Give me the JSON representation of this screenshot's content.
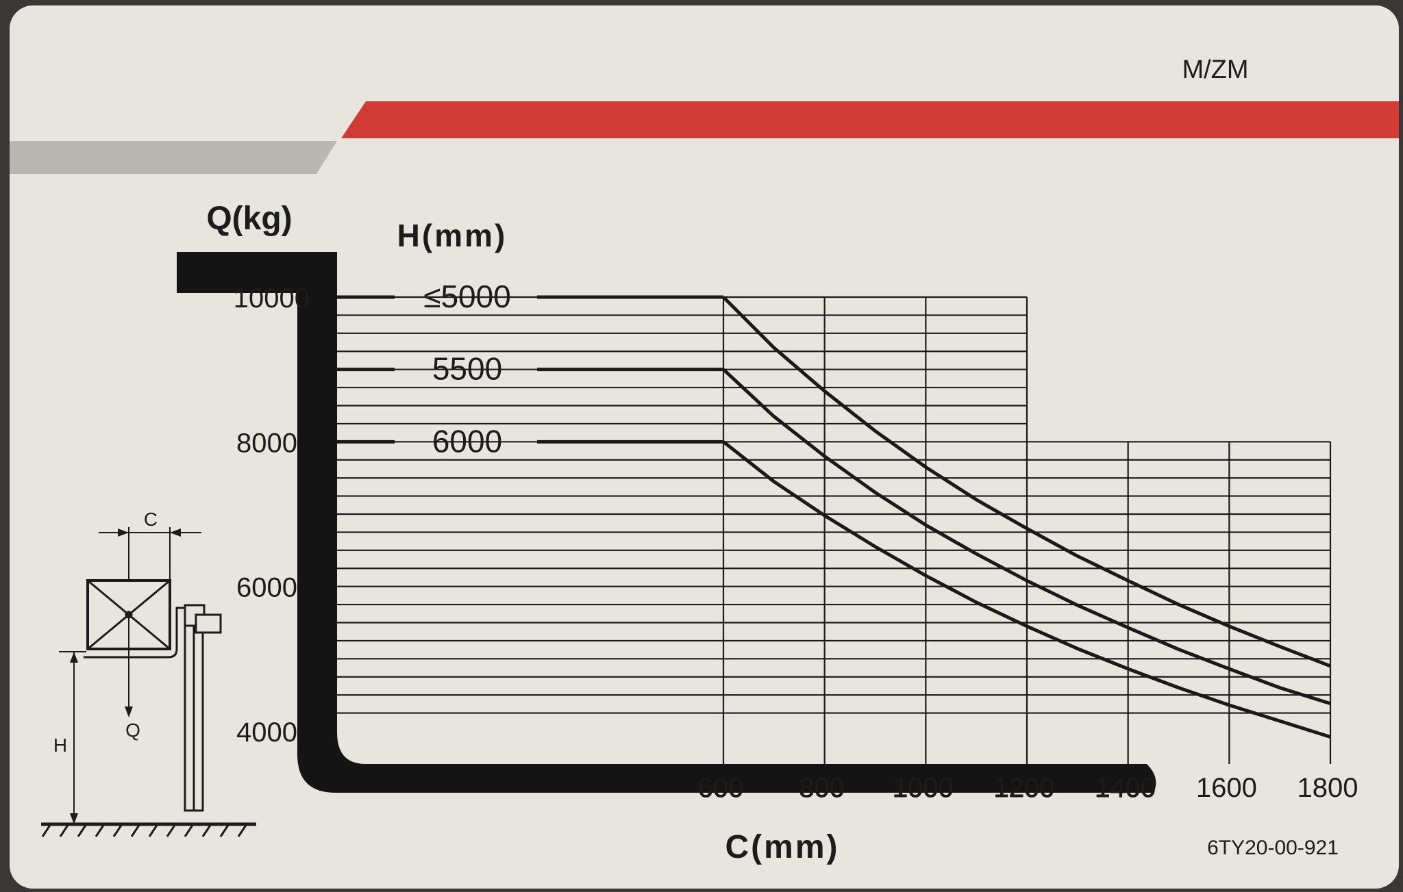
{
  "plate": {
    "model_code": "M/ZM",
    "part_number": "6TY20-00-921"
  },
  "colors": {
    "stripe_red": "#d23a36",
    "stripe_grey": "#b9b7b1",
    "plate": "#e7e5dd",
    "ink": "#1a1a1a"
  },
  "diagram": {
    "c_label": "C",
    "q_label": "Q",
    "h_label": "H"
  },
  "chart_data": {
    "type": "line",
    "title": "",
    "xlabel": "C(mm)",
    "ylabel": "Q(kg)",
    "series_label_header": "H(mm)",
    "xlim": [
      600,
      1800
    ],
    "ylim": [
      4000,
      10000
    ],
    "x_ticks": [
      "600",
      "800",
      "1000",
      "1200",
      "1400",
      "1600",
      "1800"
    ],
    "y_ticks": [
      "4000",
      "6000",
      "8000",
      "10000"
    ],
    "grid": true,
    "x": [
      600,
      700,
      800,
      900,
      1000,
      1100,
      1200,
      1300,
      1400,
      1500,
      1600,
      1700,
      1800
    ],
    "series": [
      {
        "name": "≤5000",
        "values": [
          10000,
          9300,
          8700,
          8150,
          7650,
          7200,
          6800,
          6420,
          6080,
          5750,
          5450,
          5170,
          4900
        ]
      },
      {
        "name": "5500",
        "values": [
          9000,
          8350,
          7800,
          7300,
          6850,
          6450,
          6080,
          5740,
          5430,
          5130,
          4860,
          4600,
          4380
        ]
      },
      {
        "name": "6000",
        "values": [
          8000,
          7450,
          6980,
          6550,
          6150,
          5780,
          5450,
          5140,
          4860,
          4600,
          4360,
          4140,
          3920
        ]
      }
    ]
  }
}
